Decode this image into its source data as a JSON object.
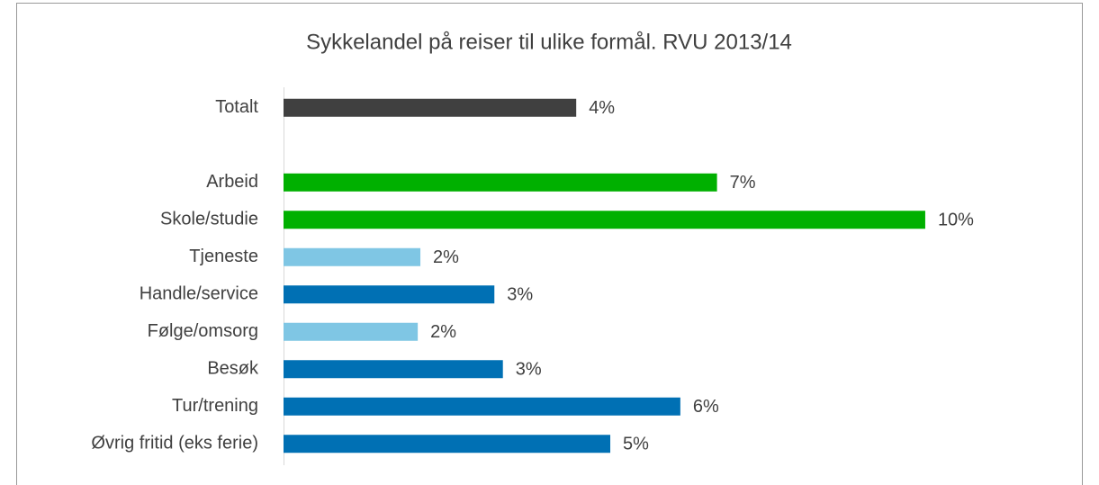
{
  "chart_data": {
    "type": "barh",
    "title": "Sykkelandel på reiser til ulike formål. RVU 2013/14",
    "categories": [
      "Totalt",
      null,
      "Arbeid",
      "Skole/studie",
      "Tjeneste",
      "Handle/service",
      "Følge/omsorg",
      "Besøk",
      "Tur/trening",
      "Øvrig fritid (eks ferie)"
    ],
    "values": [
      4.47,
      null,
      6.62,
      9.8,
      2.09,
      3.22,
      2.05,
      3.35,
      6.06,
      4.99
    ],
    "value_labels": [
      "4%",
      null,
      "7%",
      "10%",
      "2%",
      "3%",
      "2%",
      "3%",
      "6%",
      "5%"
    ],
    "colors": [
      "#404040",
      null,
      "#00b000",
      "#00b000",
      "#7fc6e4",
      "#0070b4",
      "#7fc6e4",
      "#0070b4",
      "#0070b4",
      "#0070b4"
    ],
    "xlim": [
      0,
      12
    ]
  }
}
